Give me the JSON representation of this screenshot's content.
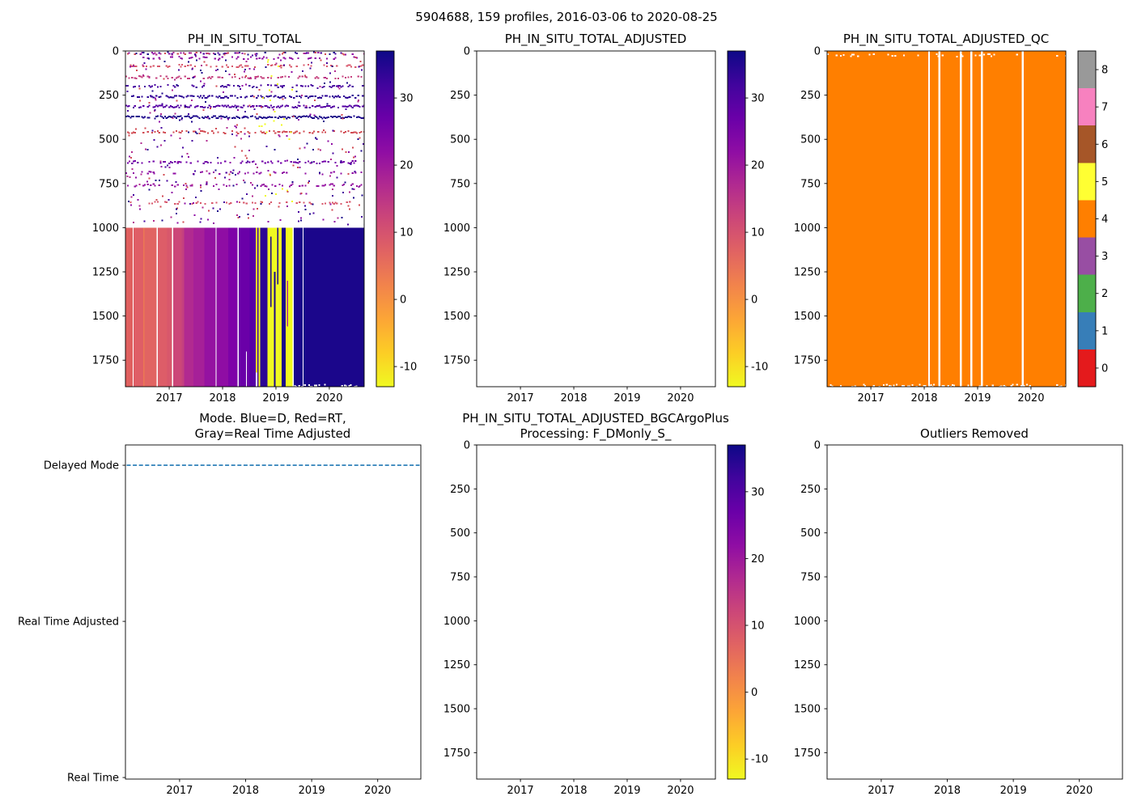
{
  "figure_title": "5904688, 159 profiles, 2016-03-06 to 2020-08-25",
  "x_axis": {
    "tick_labels": [
      "2017",
      "2018",
      "2019",
      "2020"
    ],
    "tick_values": [
      2017,
      2018,
      2019,
      2020
    ],
    "range": [
      2016.18,
      2020.653
    ]
  },
  "depth_axis": {
    "tick_labels": [
      "0",
      "250",
      "500",
      "750",
      "1000",
      "1250",
      "1500",
      "1750"
    ],
    "tick_values": [
      0,
      250,
      500,
      750,
      1000,
      1250,
      1500,
      1750
    ],
    "range": [
      0,
      1900
    ]
  },
  "ph_colorbar": {
    "tick_labels": [
      "30",
      "20",
      "10",
      "0",
      "-10"
    ],
    "tick_values": [
      30,
      20,
      10,
      0,
      -10
    ],
    "vmin": -13,
    "vmax": 37,
    "gradient_stops": [
      [
        0.0,
        "#0d0887"
      ],
      [
        0.1,
        "#41049d"
      ],
      [
        0.2,
        "#6a00a8"
      ],
      [
        0.3,
        "#8f0da4"
      ],
      [
        0.4,
        "#b12a90"
      ],
      [
        0.5,
        "#cc4778"
      ],
      [
        0.6,
        "#e16462"
      ],
      [
        0.7,
        "#f2844b"
      ],
      [
        0.8,
        "#fca636"
      ],
      [
        0.9,
        "#fcce25"
      ],
      [
        1.0,
        "#f0f921"
      ]
    ]
  },
  "qc_colorbar": {
    "tick_labels": [
      "8",
      "7",
      "6",
      "5",
      "4",
      "3",
      "2",
      "1",
      "0"
    ],
    "colors_top_to_bottom": [
      "#999999",
      "#f781bf",
      "#a65628",
      "#ffff33",
      "#ff7f00",
      "#984ea3",
      "#4daf4a",
      "#377eb8",
      "#e41a1c"
    ]
  },
  "chart_data": [
    {
      "type": "heatmap",
      "title": "PH_IN_SITU_TOTAL",
      "x_tick_labels": [
        "2017",
        "2018",
        "2019",
        "2020"
      ],
      "y_tick_labels": [
        "0",
        "250",
        "500",
        "750",
        "1000",
        "1250",
        "1500",
        "1750"
      ],
      "x_range_years": [
        2016.18,
        2020.653
      ],
      "depth_range_dbar": [
        0,
        1900
      ],
      "colorbar_tick_labels": [
        "30",
        "20",
        "10",
        "0",
        "-10"
      ],
      "deep_region_top_dbar": 1000,
      "deep_bands": [
        [
          0.0,
          0.03,
          "#e0605f"
        ],
        [
          0.03,
          0.034,
          "#ffffff"
        ],
        [
          0.034,
          0.075,
          "#df5e66"
        ],
        [
          0.075,
          0.08,
          "#ec7754"
        ],
        [
          0.08,
          0.13,
          "#e16462"
        ],
        [
          0.13,
          0.136,
          "#ffffff"
        ],
        [
          0.136,
          0.175,
          "#dd5d68"
        ],
        [
          0.175,
          0.195,
          "#d8576b"
        ],
        [
          0.195,
          0.2,
          "#ffffff"
        ],
        [
          0.2,
          0.235,
          "#cc4778"
        ],
        [
          0.235,
          0.245,
          "#c5407e"
        ],
        [
          0.245,
          0.285,
          "#b12a90"
        ],
        [
          0.285,
          0.33,
          "#a62098"
        ],
        [
          0.33,
          0.378,
          "#9512a1"
        ],
        [
          0.378,
          0.382,
          "#ffffff"
        ],
        [
          0.382,
          0.43,
          "#8f0da4"
        ],
        [
          0.43,
          0.47,
          "#7e03a8"
        ],
        [
          0.47,
          0.474,
          "#ffffff"
        ],
        [
          0.474,
          0.52,
          "#6a00a8"
        ],
        [
          0.52,
          0.545,
          "#5601a4"
        ],
        [
          0.545,
          0.552,
          "#f0f921"
        ],
        [
          0.552,
          0.558,
          "#46039f"
        ],
        [
          0.558,
          0.565,
          "#f0f921"
        ],
        [
          0.565,
          0.595,
          "#2c0594"
        ],
        [
          0.595,
          0.655,
          "#f0f921"
        ],
        [
          0.655,
          0.672,
          "#1b068b"
        ],
        [
          0.672,
          0.7,
          "#f0f921"
        ],
        [
          0.7,
          0.705,
          "#ffffff"
        ],
        [
          0.705,
          1.0,
          "#1b068b"
        ]
      ],
      "deep_patches": [
        {
          "t0": 0.606,
          "t1": 0.612,
          "d0": 1050,
          "d1": 1450,
          "color": "#1b068b"
        },
        {
          "t0": 0.622,
          "t1": 0.628,
          "d0": 1250,
          "d1": 1900,
          "color": "#1b068b"
        },
        {
          "t0": 0.636,
          "t1": 0.641,
          "d0": 1000,
          "d1": 1320,
          "color": "#1b068b"
        },
        {
          "t0": 0.676,
          "t1": 0.682,
          "d0": 1300,
          "d1": 1560,
          "color": "#b12a90"
        },
        {
          "t0": 0.545,
          "t1": 0.553,
          "d0": 1820,
          "d1": 1900,
          "color": "#ffffff"
        },
        {
          "t0": 0.742,
          "t1": 0.745,
          "d0": 1000,
          "d1": 1900,
          "color": "#ffffff"
        },
        {
          "t0": 0.505,
          "t1": 0.509,
          "d0": 1700,
          "d1": 1900,
          "color": "#ffffff"
        }
      ],
      "sparse_rows": [
        {
          "depth": 10,
          "color": "mix",
          "density": 0.45
        },
        {
          "depth": 35,
          "color": "#8f0da4",
          "density": 0.3
        },
        {
          "depth": 80,
          "color": "#d8576b",
          "density": 0.4
        },
        {
          "depth": 145,
          "color": "#c5407e",
          "density": 0.45
        },
        {
          "depth": 195,
          "color": "#46039f",
          "density": 0.4
        },
        {
          "depth": 255,
          "color": "#2c0594",
          "density": 0.7
        },
        {
          "depth": 310,
          "color": "#5601a4",
          "density": 0.75
        },
        {
          "depth": 370,
          "color": "#1b068b",
          "density": 0.9
        },
        {
          "depth": 455,
          "color": "#d14a52",
          "density": 0.45
        },
        {
          "depth": 625,
          "color": "#7201a8",
          "density": 0.35
        },
        {
          "depth": 685,
          "color": "#8f0da4",
          "density": 0.3
        },
        {
          "depth": 755,
          "color": "#9512a1",
          "density": 0.35
        },
        {
          "depth": 855,
          "color": "#d8576b",
          "density": 0.3
        },
        {
          "depth": 1890,
          "color": "#ffffff",
          "density": 0.45,
          "t0": 0.7,
          "t1": 1.0
        }
      ],
      "scatter": {
        "count": 420,
        "max_depth_dbar": 980,
        "colors": [
          "#1b068b",
          "#46039f",
          "#8f0da4",
          "#b12a90",
          "#d14a52"
        ],
        "yellow_color": "#f0f921",
        "yellow_band_fraction": [
          0.55,
          0.7
        ]
      }
    },
    {
      "type": "empty",
      "title": "PH_IN_SITU_TOTAL_ADJUSTED",
      "x_tick_labels": [
        "2017",
        "2018",
        "2019",
        "2020"
      ],
      "y_tick_labels": [
        "0",
        "250",
        "500",
        "750",
        "1000",
        "1250",
        "1500",
        "1750"
      ],
      "colorbar_tick_labels": [
        "30",
        "20",
        "10",
        "0",
        "-10"
      ],
      "data_present": false
    },
    {
      "type": "qc_heatmap",
      "title": "PH_IN_SITU_TOTAL_ADJUSTED_QC",
      "x_tick_labels": [
        "2017",
        "2018",
        "2019",
        "2020"
      ],
      "y_tick_labels": [
        "0",
        "250",
        "500",
        "750",
        "1000",
        "1250",
        "1500",
        "1750"
      ],
      "dominant_qc_value": 4,
      "fill_color": "#ff7f00",
      "gap_fractions": [
        0.427,
        0.471,
        0.56,
        0.604,
        0.648,
        0.819
      ],
      "colorbar_tick_labels": [
        "8",
        "7",
        "6",
        "5",
        "4",
        "3",
        "2",
        "1",
        "0"
      ],
      "white_speckle_rows": [
        {
          "depth": 20,
          "density": 0.25
        },
        {
          "depth": 1890,
          "density": 0.35
        }
      ]
    },
    {
      "type": "line",
      "title": "Mode. Blue=D, Red=RT,\nGray=Real Time Adjusted",
      "x_tick_labels": [
        "2017",
        "2018",
        "2019",
        "2020"
      ],
      "y_categories": [
        {
          "label": "Delayed Mode",
          "value": 2
        },
        {
          "label": "Real Time Adjusted",
          "value": 1
        },
        {
          "label": "Real Time",
          "value": 0
        }
      ],
      "series": [
        {
          "name": "mode",
          "color": "#1f77b4",
          "line_style": "dashed",
          "constant_value": 2,
          "x_span_years": [
            2016.18,
            2020.653
          ]
        }
      ]
    },
    {
      "type": "empty",
      "title": "PH_IN_SITU_TOTAL_ADJUSTED_BGCArgoPlus\nProcessing: F_DMonly_S_",
      "x_tick_labels": [
        "2017",
        "2018",
        "2019",
        "2020"
      ],
      "y_tick_labels": [
        "0",
        "250",
        "500",
        "750",
        "1000",
        "1250",
        "1500",
        "1750"
      ],
      "colorbar_tick_labels": [
        "30",
        "20",
        "10",
        "0",
        "-10"
      ],
      "data_present": false
    },
    {
      "type": "empty",
      "title": "Outliers Removed",
      "x_tick_labels": [
        "2017",
        "2018",
        "2019",
        "2020"
      ],
      "y_tick_labels": [
        "0",
        "250",
        "500",
        "750",
        "1000",
        "1250",
        "1500",
        "1750"
      ],
      "data_present": false
    }
  ]
}
